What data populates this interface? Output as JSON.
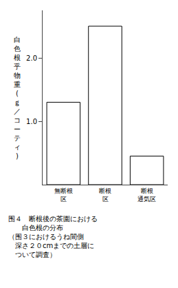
{
  "chart_data": {
    "type": "bar",
    "categories": [
      "無断根\n区",
      "断根\n区",
      "断根\n通気区"
    ],
    "values": [
      1.3,
      2.5,
      0.45
    ],
    "color": "#ffffff",
    "ylabel": "白色根乎物重(ｇ／コーティ)",
    "ylim": [
      0,
      2.75
    ],
    "yticks": [
      {
        "value": 1.0,
        "label": "1.0"
      },
      {
        "value": 2.0,
        "label": "2.0"
      }
    ],
    "grid": false,
    "annotations": [
      "围４　断根後の茶園における",
      "　　白色根の分布",
      "（围３におけるうね間側",
      "　深さ２０cmまでの土層に",
      "　ついて調査）"
    ]
  }
}
